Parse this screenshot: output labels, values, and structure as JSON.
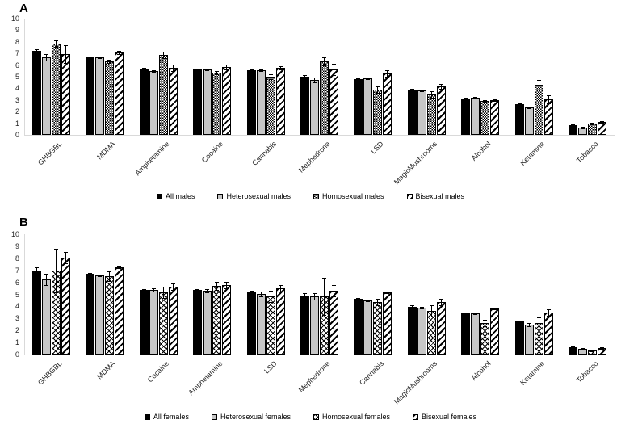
{
  "colors": {
    "bar_gray": "#c6c6c6",
    "axis_line": "#d9d9d9",
    "text": "#262626",
    "error_bar": "#000000"
  },
  "chart_data": [
    {
      "type": "bar",
      "panel_label": "A",
      "title": "",
      "xlabel": "",
      "ylabel": "",
      "ylim": [
        0,
        10
      ],
      "yticks": [
        0,
        1,
        2,
        3,
        4,
        5,
        6,
        7,
        8,
        9,
        10
      ],
      "grid": false,
      "legend_position": "bottom",
      "error_bars": true,
      "categories": [
        "GHBGBL",
        "MDMA",
        "Amphetamine",
        "Cocaine",
        "Cannabis",
        "Mephedrone",
        "LSD",
        "MagicMushrooms",
        "Alcohol",
        "Ketamine",
        "Tobacco"
      ],
      "series": [
        {
          "name": "All males",
          "pattern": "solid",
          "values": [
            7.2,
            6.7,
            5.7,
            5.6,
            5.55,
            5.0,
            4.8,
            3.9,
            3.15,
            2.65,
            0.8
          ],
          "errors": [
            0.15,
            0.05,
            0.1,
            0.05,
            0.05,
            0.15,
            0.1,
            0.1,
            0.05,
            0.1,
            0.05
          ]
        },
        {
          "name": "Heterosexual males",
          "pattern": "gray",
          "values": [
            6.7,
            6.7,
            5.5,
            5.65,
            5.55,
            4.7,
            4.85,
            3.85,
            3.2,
            2.35,
            0.65
          ],
          "errors": [
            0.3,
            0.05,
            0.1,
            0.1,
            0.1,
            0.2,
            0.1,
            0.1,
            0.1,
            0.1,
            0.05
          ]
        },
        {
          "name": "Homosexual males",
          "pattern": "checker",
          "values": [
            7.85,
            6.35,
            6.85,
            5.35,
            5.0,
            6.3,
            3.9,
            3.5,
            2.9,
            4.3,
            0.95
          ],
          "errors": [
            0.25,
            0.15,
            0.25,
            0.15,
            0.2,
            0.35,
            0.3,
            0.25,
            0.1,
            0.4,
            0.1
          ]
        },
        {
          "name": "Bisexual males",
          "pattern": "diagonal",
          "values": [
            6.95,
            7.05,
            5.75,
            5.8,
            5.75,
            5.6,
            5.3,
            4.2,
            3.0,
            3.05,
            1.1
          ],
          "errors": [
            0.75,
            0.15,
            0.3,
            0.2,
            0.15,
            0.5,
            0.25,
            0.2,
            0.1,
            0.35,
            0.1
          ]
        }
      ]
    },
    {
      "type": "bar",
      "panel_label": "B",
      "title": "",
      "xlabel": "",
      "ylabel": "",
      "ylim": [
        0,
        10
      ],
      "yticks": [
        0,
        1,
        2,
        3,
        4,
        5,
        6,
        7,
        8,
        9,
        10
      ],
      "grid": false,
      "legend_position": "bottom",
      "error_bars": true,
      "categories": [
        "GHBGBL",
        "MDMA",
        "Cocaine",
        "Amphetamine",
        "LSD",
        "Mephedrone",
        "Cannabis",
        "MagicMushrooms",
        "Alcohol",
        "Ketamine",
        "Tobacco"
      ],
      "series": [
        {
          "name": "All females",
          "pattern": "solid",
          "values": [
            6.9,
            6.7,
            5.4,
            5.4,
            5.15,
            4.9,
            4.6,
            3.95,
            3.4,
            2.75,
            0.6
          ],
          "errors": [
            0.35,
            0.05,
            0.1,
            0.1,
            0.15,
            0.2,
            0.05,
            0.15,
            0.05,
            0.1,
            0.05
          ]
        },
        {
          "name": "Heterosexual females",
          "pattern": "gray",
          "values": [
            6.25,
            6.55,
            5.4,
            5.3,
            5.0,
            4.85,
            4.5,
            3.9,
            3.45,
            2.45,
            0.5
          ],
          "errors": [
            0.5,
            0.1,
            0.15,
            0.15,
            0.2,
            0.3,
            0.1,
            0.1,
            0.05,
            0.15,
            0.05
          ]
        },
        {
          "name": "Homosexual females",
          "pattern": "crosshatch",
          "values": [
            7.0,
            6.5,
            5.2,
            5.7,
            4.8,
            4.85,
            4.35,
            3.6,
            2.65,
            2.6,
            0.35
          ],
          "errors": [
            1.8,
            0.4,
            0.5,
            0.35,
            0.45,
            1.55,
            0.3,
            0.5,
            0.3,
            0.5,
            0.1
          ]
        },
        {
          "name": "Bisexual females",
          "pattern": "diagonal",
          "values": [
            8.05,
            7.25,
            5.65,
            5.8,
            5.5,
            5.3,
            5.15,
            4.35,
            3.85,
            3.5,
            0.55
          ],
          "errors": [
            0.45,
            0.1,
            0.25,
            0.3,
            0.3,
            0.45,
            0.1,
            0.25,
            0.1,
            0.3,
            0.1
          ]
        }
      ]
    }
  ]
}
